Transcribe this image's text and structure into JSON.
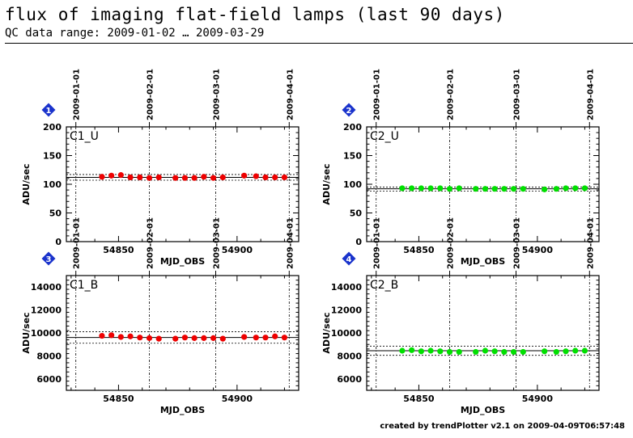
{
  "header": {
    "title": "flux of imaging flat-field lamps (last 90 days)",
    "subtitle": "QC data range: 2009-01-02 … 2009-03-29"
  },
  "footer": "created by trendPlotter v2.1 on 2009-04-09T06:57:48",
  "colors": {
    "red": "#ee0000",
    "green": "#00e000",
    "badge": "#1a33cc"
  },
  "chart_data": [
    {
      "type": "scatter",
      "badge": "1",
      "label": "C1_U",
      "xlabel": "MJD_OBS",
      "ylabel": "ADU/sec",
      "xlim": [
        54828,
        54926
      ],
      "ylim": [
        0,
        200
      ],
      "xticks": [
        54850,
        54900
      ],
      "yticks": [
        0,
        50,
        100,
        150,
        200
      ],
      "date_lines": [
        {
          "mjd": 54832,
          "label": "2009-01-01"
        },
        {
          "mjd": 54863,
          "label": "2009-02-01"
        },
        {
          "mjd": 54891,
          "label": "2009-03-01"
        },
        {
          "mjd": 54922,
          "label": "2009-04-01"
        }
      ],
      "color_key": "red",
      "reference": {
        "mean": 112,
        "lower": 107,
        "upper": 117
      },
      "x": [
        54843,
        54847,
        54851,
        54855,
        54859,
        54863,
        54867,
        54874,
        54878,
        54882,
        54886,
        54890,
        54894,
        54903,
        54908,
        54912,
        54916,
        54920
      ],
      "y": [
        113,
        115,
        116,
        112,
        112,
        111,
        112,
        111,
        111,
        111,
        113,
        111,
        112,
        115,
        114,
        112,
        112,
        112
      ]
    },
    {
      "type": "scatter",
      "badge": "2",
      "label": "C2_U",
      "xlabel": "MJD_OBS",
      "ylabel": "ADU/sec",
      "xlim": [
        54828,
        54926
      ],
      "ylim": [
        0,
        200
      ],
      "xticks": [
        54850,
        54900
      ],
      "yticks": [
        0,
        50,
        100,
        150,
        200
      ],
      "date_lines": [
        {
          "mjd": 54832,
          "label": "2009-01-01"
        },
        {
          "mjd": 54863,
          "label": "2009-02-01"
        },
        {
          "mjd": 54891,
          "label": "2009-03-01"
        },
        {
          "mjd": 54922,
          "label": "2009-04-01"
        }
      ],
      "color_key": "green",
      "reference": {
        "mean": 92,
        "lower": 88,
        "upper": 95
      },
      "x": [
        54843,
        54847,
        54851,
        54855,
        54859,
        54863,
        54867,
        54874,
        54878,
        54882,
        54886,
        54890,
        54894,
        54903,
        54908,
        54912,
        54916,
        54920
      ],
      "y": [
        93,
        93,
        93,
        93,
        93,
        92,
        93,
        92,
        92,
        92,
        92,
        92,
        92,
        91,
        92,
        93,
        93,
        93
      ]
    },
    {
      "type": "scatter",
      "badge": "3",
      "label": "C1_B",
      "xlabel": "MJD_OBS",
      "ylabel": "ADU/sec",
      "xlim": [
        54828,
        54926
      ],
      "ylim": [
        5000,
        15000
      ],
      "xticks": [
        54850,
        54900
      ],
      "yticks": [
        6000,
        8000,
        10000,
        12000,
        14000
      ],
      "date_lines": [
        {
          "mjd": 54832,
          "label": "2009-01-01"
        },
        {
          "mjd": 54863,
          "label": "2009-02-01"
        },
        {
          "mjd": 54891,
          "label": "2009-03-01"
        },
        {
          "mjd": 54922,
          "label": "2009-04-01"
        }
      ],
      "color_key": "red",
      "reference": {
        "mean": 9600,
        "lower": 9100,
        "upper": 10100
      },
      "x": [
        54843,
        54847,
        54851,
        54855,
        54859,
        54863,
        54867,
        54874,
        54878,
        54882,
        54886,
        54890,
        54894,
        54903,
        54908,
        54912,
        54916,
        54920
      ],
      "y": [
        9750,
        9800,
        9650,
        9700,
        9600,
        9550,
        9500,
        9500,
        9600,
        9550,
        9550,
        9550,
        9500,
        9650,
        9600,
        9600,
        9700,
        9600
      ]
    },
    {
      "type": "scatter",
      "badge": "4",
      "label": "C2_B",
      "xlabel": "MJD_OBS",
      "ylabel": "ADU/sec",
      "xlim": [
        54828,
        54926
      ],
      "ylim": [
        5000,
        15000
      ],
      "xticks": [
        54850,
        54900
      ],
      "yticks": [
        6000,
        8000,
        10000,
        12000,
        14000
      ],
      "date_lines": [
        {
          "mjd": 54832,
          "label": "2009-01-01"
        },
        {
          "mjd": 54863,
          "label": "2009-02-01"
        },
        {
          "mjd": 54891,
          "label": "2009-03-01"
        },
        {
          "mjd": 54922,
          "label": "2009-04-01"
        }
      ],
      "color_key": "green",
      "reference": {
        "mean": 8450,
        "lower": 8050,
        "upper": 8850
      },
      "x": [
        54843,
        54847,
        54851,
        54855,
        54859,
        54863,
        54867,
        54874,
        54878,
        54882,
        54886,
        54890,
        54894,
        54903,
        54908,
        54912,
        54916,
        54920
      ],
      "y": [
        8450,
        8500,
        8400,
        8450,
        8400,
        8350,
        8350,
        8350,
        8450,
        8400,
        8350,
        8350,
        8350,
        8400,
        8350,
        8400,
        8450,
        8450
      ]
    }
  ]
}
